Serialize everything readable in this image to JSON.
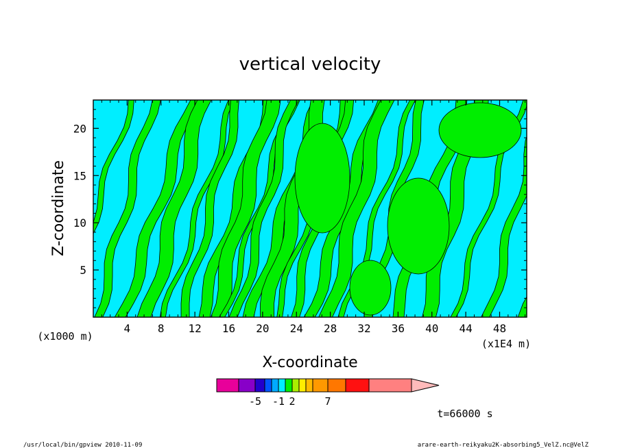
{
  "chart_data": {
    "type": "heatmap",
    "title": "vertical velocity",
    "xlabel": "X-coordinate",
    "ylabel": "Z-coordinate",
    "x_unit_label": "(x1E4 m)",
    "y_unit_label": "(x1000 m)",
    "x_ticks": [
      "4",
      "8",
      "12",
      "16",
      "20",
      "24",
      "28",
      "32",
      "36",
      "40",
      "44",
      "48"
    ],
    "y_ticks": [
      "5",
      "10",
      "15",
      "20"
    ],
    "xlim": [
      0,
      51.2
    ],
    "ylim": [
      0,
      23
    ],
    "grid": false,
    "fill_colors": {
      "negative": "#00eeff",
      "positive": "#00ee00"
    },
    "colorbar": {
      "tick_labels": [
        "-5",
        "-1",
        "2",
        "7"
      ],
      "colors": [
        "#e8009a",
        "#8800c8",
        "#2200cc",
        "#0055ff",
        "#00aaff",
        "#00eeff",
        "#00ee00",
        "#aaee00",
        "#ffee00",
        "#ffbb00",
        "#ff9900",
        "#ff7700",
        "#ff1111",
        "#ff8080",
        "#ffbbbb"
      ]
    },
    "annotations": {
      "time": "t=66000 s",
      "footer_left": "/usr/local/bin/gpview   2010-11-09",
      "footer_right": "arare-earth-reikyaku2K-absorbing5_VelZ.nc@VelZ"
    }
  }
}
